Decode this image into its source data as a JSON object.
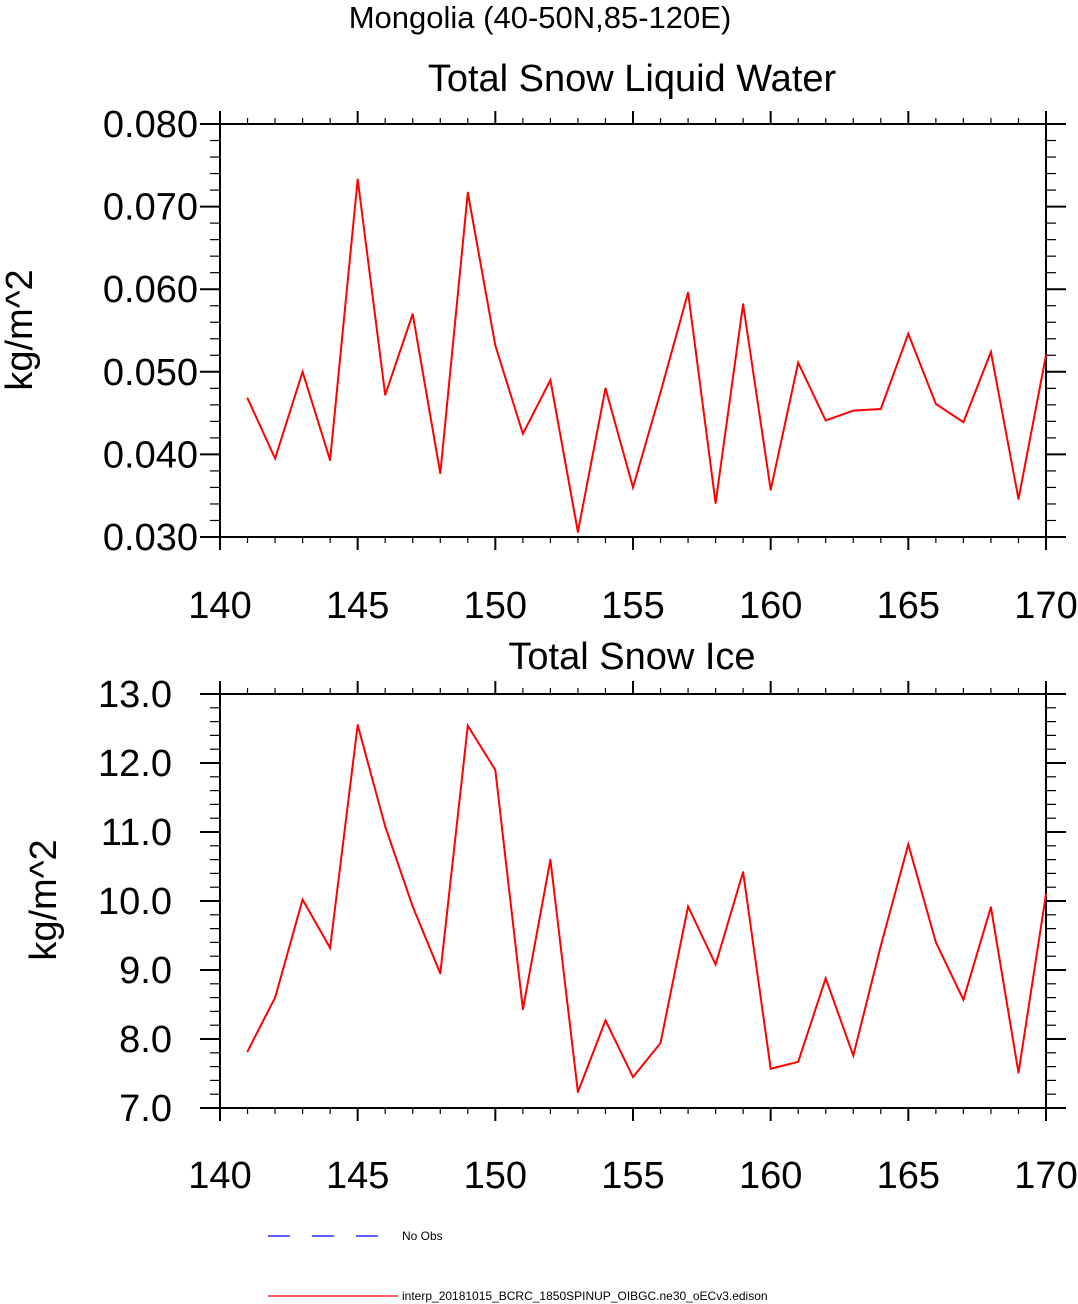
{
  "figure": {
    "region_title": "Mongolia (40-50N,85-120E)"
  },
  "chart_data": [
    {
      "type": "line",
      "title": "Total Snow Liquid Water",
      "xlabel": "",
      "ylabel": "kg/m^2",
      "xlim": [
        140,
        170
      ],
      "ylim": [
        0.03,
        0.08
      ],
      "x_ticks": [
        140,
        145,
        150,
        155,
        160,
        165,
        170
      ],
      "x_tick_labels": [
        "140",
        "145",
        "150",
        "155",
        "160",
        "165",
        "170"
      ],
      "y_ticks": [
        0.03,
        0.04,
        0.05,
        0.06,
        0.07,
        0.08
      ],
      "y_tick_labels": [
        "0.030",
        "0.040",
        "0.050",
        "0.060",
        "0.070",
        "0.080"
      ],
      "series": [
        {
          "name": "interp_20181015_BCRC_1850SPINUP_OIBGC.ne30_oECv3.edison",
          "color": "#ff0000",
          "x": [
            141,
            142,
            143,
            144,
            145,
            146,
            147,
            148,
            149,
            150,
            151,
            152,
            153,
            154,
            155,
            156,
            157,
            158,
            159,
            160,
            161,
            162,
            163,
            164,
            165,
            166,
            167,
            168,
            169,
            170
          ],
          "values": [
            0.0468,
            0.0395,
            0.05,
            0.0393,
            0.0733,
            0.0472,
            0.057,
            0.0377,
            0.0717,
            0.0532,
            0.0425,
            0.049,
            0.0306,
            0.048,
            0.036,
            0.0475,
            0.0596,
            0.0341,
            0.0582,
            0.0357,
            0.0511,
            0.0441,
            0.0453,
            0.0455,
            0.0546,
            0.0461,
            0.0439,
            0.0524,
            0.0346,
            0.052
          ]
        }
      ]
    },
    {
      "type": "line",
      "title": "Total Snow Ice",
      "xlabel": "",
      "ylabel": "kg/m^2",
      "xlim": [
        140,
        170
      ],
      "ylim": [
        7.0,
        13.0
      ],
      "x_ticks": [
        140,
        145,
        150,
        155,
        160,
        165,
        170
      ],
      "x_tick_labels": [
        "140",
        "145",
        "150",
        "155",
        "160",
        "165",
        "170"
      ],
      "y_ticks": [
        7.0,
        8.0,
        9.0,
        10.0,
        11.0,
        12.0,
        13.0
      ],
      "y_tick_labels": [
        "7.0",
        "8.0",
        "9.0",
        "10.0",
        "11.0",
        "12.0",
        "13.0"
      ],
      "series": [
        {
          "name": "interp_20181015_BCRC_1850SPINUP_OIBGC.ne30_oECv3.edison",
          "color": "#ff0000",
          "x": [
            141,
            142,
            143,
            144,
            145,
            146,
            147,
            148,
            149,
            150,
            151,
            152,
            153,
            154,
            155,
            156,
            157,
            158,
            159,
            160,
            161,
            162,
            163,
            164,
            165,
            166,
            167,
            168,
            169,
            170
          ],
          "values": [
            7.82,
            8.6,
            10.02,
            9.32,
            12.55,
            11.08,
            9.92,
            8.95,
            12.54,
            11.9,
            8.43,
            10.6,
            7.23,
            8.27,
            7.45,
            7.94,
            9.92,
            9.08,
            10.42,
            7.57,
            7.67,
            8.88,
            7.76,
            9.35,
            10.82,
            9.4,
            8.57,
            9.91,
            7.51,
            10.1
          ]
        }
      ]
    }
  ],
  "legend": {
    "placement": "bottom-left",
    "entries": [
      {
        "label": "No Obs",
        "color": "#0000ff",
        "style": "dashed"
      },
      {
        "label": "interp_20181015_BCRC_1850SPINUP_OIBGC.ne30_oECv3.edison",
        "color": "#ff0000",
        "style": "solid"
      }
    ]
  }
}
